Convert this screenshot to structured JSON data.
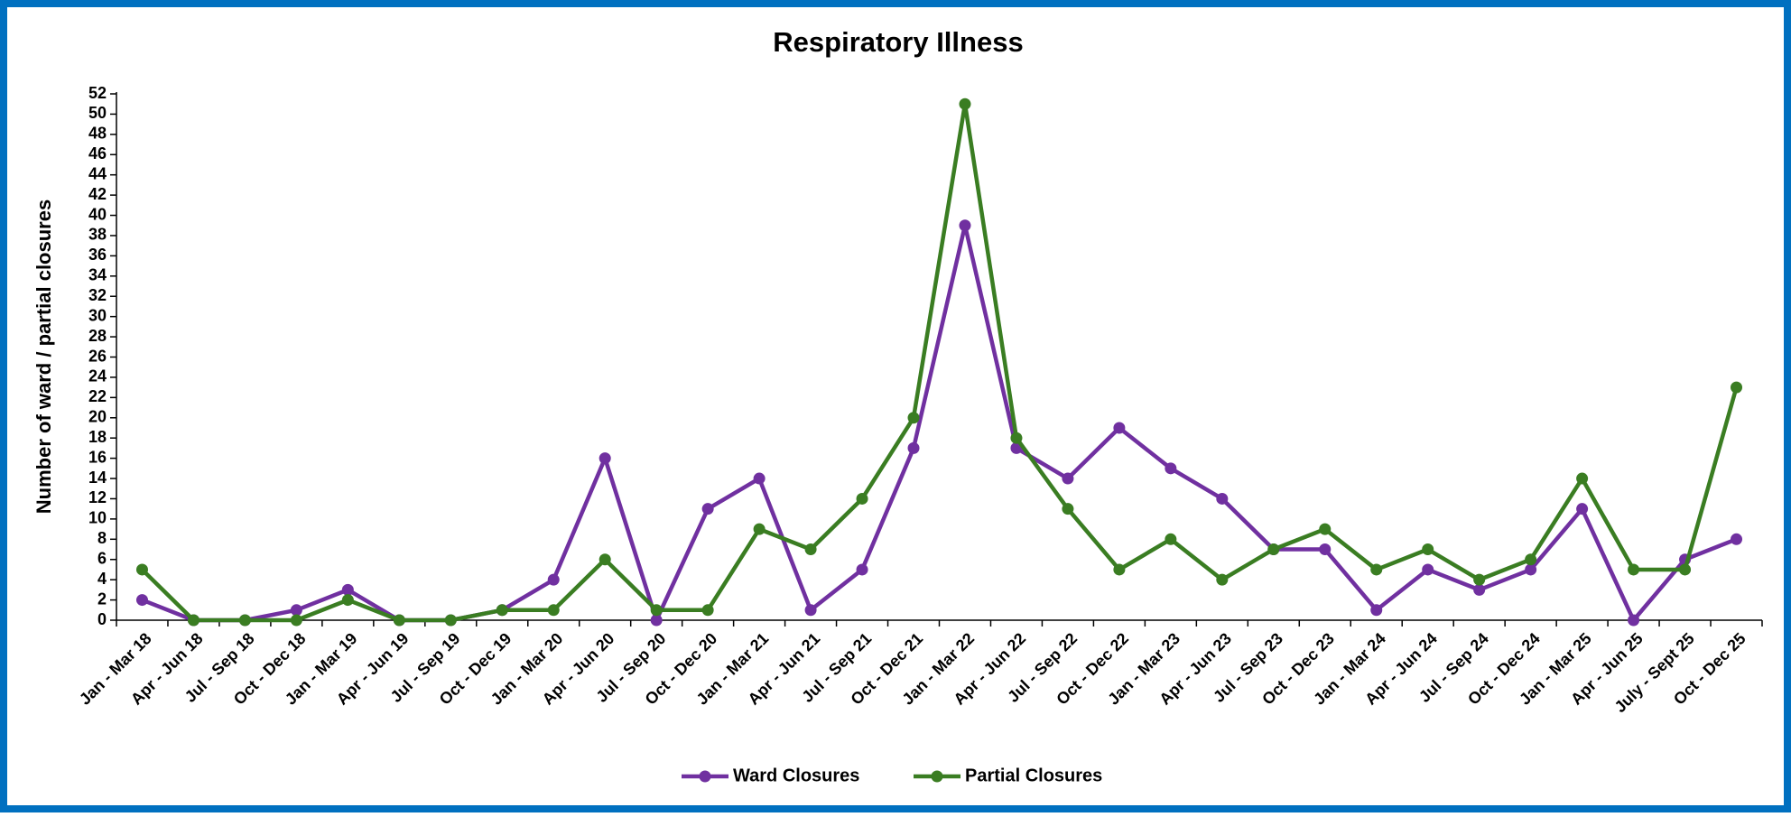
{
  "chart_data": {
    "type": "line",
    "title": "Respiratory Illness",
    "y_label": "Number of ward / partial closures",
    "categories": [
      "Jan - Mar 18",
      "Apr - Jun 18",
      "Jul - Sep 18",
      "Oct - Dec 18",
      "Jan - Mar 19",
      "Apr - Jun 19",
      "Jul - Sep 19",
      "Oct - Dec 19",
      "Jan - Mar 20",
      "Apr - Jun 20",
      "Jul - Sep 20",
      "Oct - Dec 20",
      "Jan - Mar 21",
      "Apr - Jun 21",
      "Jul - Sep 21",
      "Oct - Dec 21",
      "Jan - Mar 22",
      "Apr - Jun 22",
      "Jul - Sep 22",
      "Oct - Dec 22",
      "Jan - Mar 23",
      "Apr - Jun 23",
      "Jul - Sep 23",
      "Oct - Dec 23",
      "Jan - Mar 24",
      "Apr - Jun 24",
      "Jul - Sep 24",
      "Oct - Dec 24",
      "Jan - Mar 25",
      "Apr - Jun 25",
      "July - Sept 25",
      "Oct - Dec 25"
    ],
    "series": [
      {
        "name": "Ward Closures",
        "color": "#7030a0",
        "values": [
          2,
          0,
          0,
          1,
          3,
          0,
          0,
          1,
          4,
          16,
          0,
          11,
          14,
          1,
          5,
          17,
          39,
          17,
          14,
          19,
          15,
          12,
          7,
          7,
          1,
          5,
          3,
          5,
          11,
          0,
          6,
          8
        ]
      },
      {
        "name": "Partial Closures",
        "color": "#3a7d22",
        "values": [
          5,
          0,
          0,
          0,
          2,
          0,
          0,
          1,
          1,
          6,
          1,
          1,
          9,
          7,
          12,
          20,
          51,
          18,
          11,
          5,
          8,
          4,
          7,
          9,
          5,
          7,
          4,
          6,
          14,
          5,
          5,
          23
        ]
      }
    ],
    "ylim": [
      0,
      52
    ],
    "yticks": [
      0,
      2,
      4,
      6,
      8,
      10,
      12,
      14,
      16,
      18,
      20,
      22,
      24,
      26,
      28,
      30,
      32,
      34,
      36,
      38,
      40,
      42,
      44,
      46,
      48,
      50,
      52
    ],
    "grid": false,
    "legend": "bottom"
  }
}
